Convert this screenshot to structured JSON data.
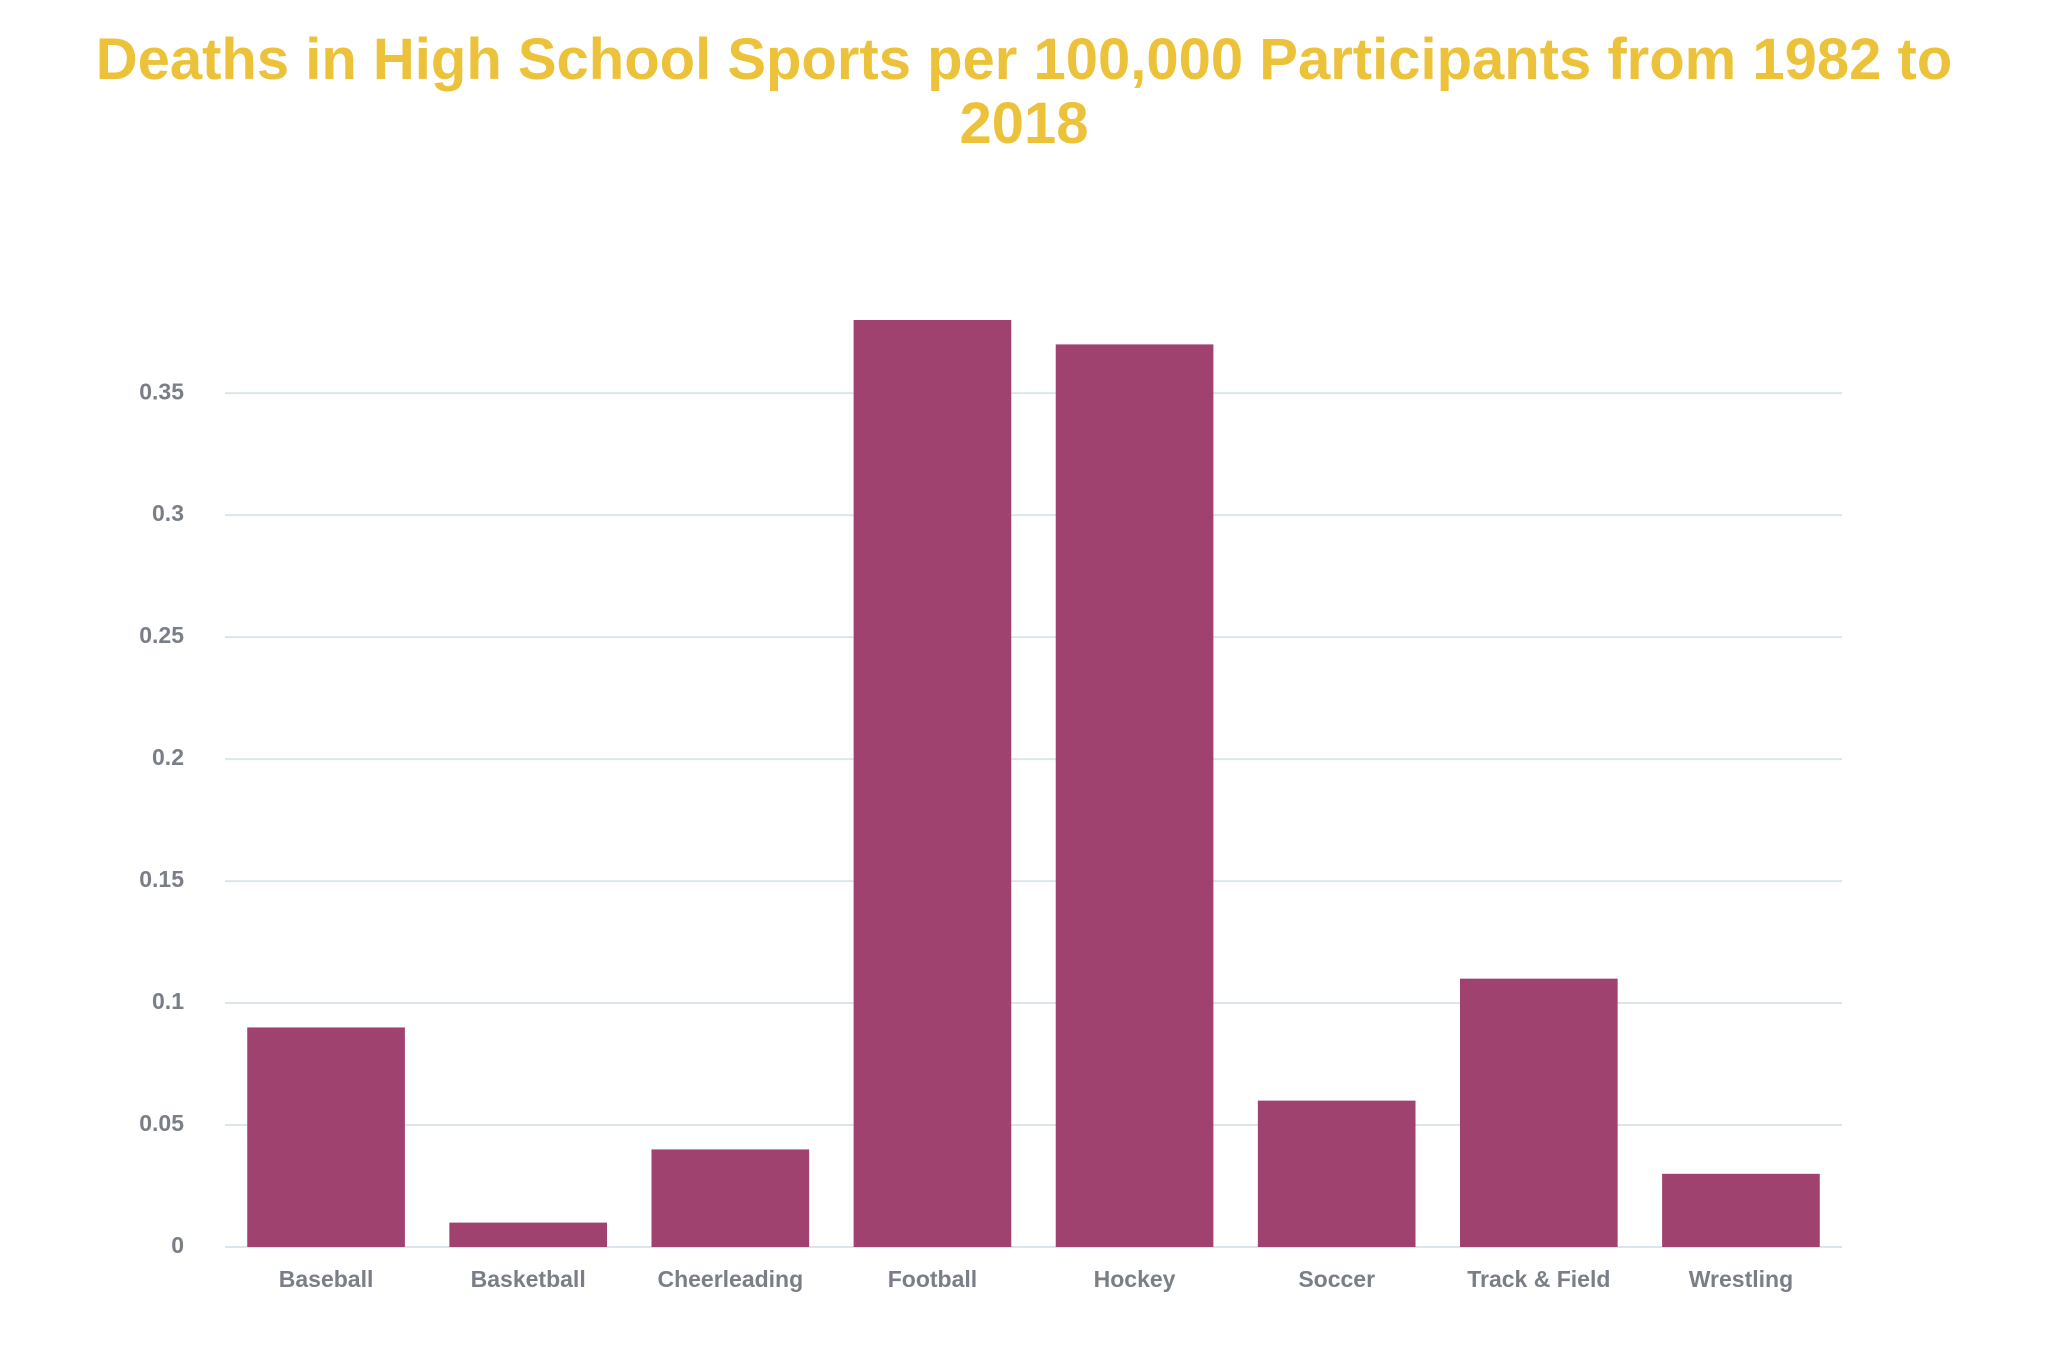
{
  "chart_data": {
    "type": "bar",
    "title": "Deaths in High School Sports per 100,000 Participants from 1982 to 2018",
    "categories": [
      "Baseball",
      "Basketball",
      "Cheerleading",
      "Football",
      "Hockey",
      "Soccer",
      "Track & Field",
      "Wrestling"
    ],
    "values": [
      0.09,
      0.01,
      0.04,
      0.38,
      0.37,
      0.06,
      0.11,
      0.03
    ],
    "color": "#a0426f",
    "ylim": [
      0,
      0.38
    ],
    "yticks": [
      0,
      0.05,
      0.1,
      0.15,
      0.2,
      0.25,
      0.3,
      0.35
    ],
    "grid": true
  }
}
